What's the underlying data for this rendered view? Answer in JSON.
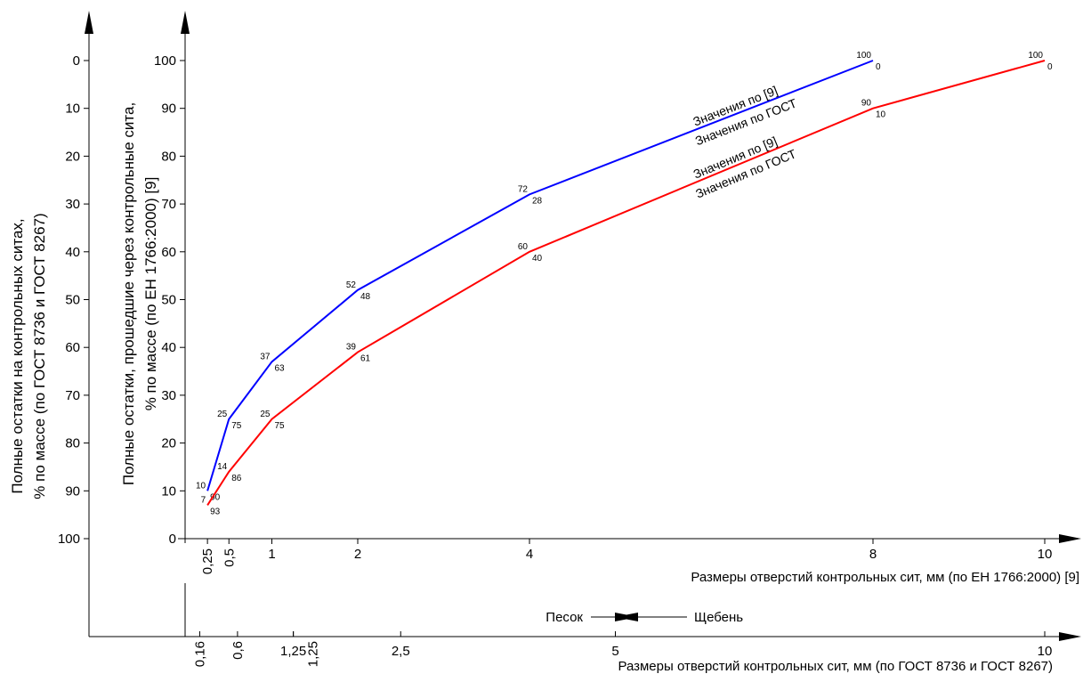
{
  "chart_data": {
    "type": "line",
    "y_title": [
      "Полные остатки, прошедшие через контрольные сита,",
      "% по массе (по ЕН 1766:2000) [9]"
    ],
    "y2_title": [
      "Полные остатки на контрольных ситах,",
      "% по массе (по ГОСТ 8736 и ГОСТ 8267)"
    ],
    "x_title": "Размеры отверстий контрольных сит, мм (по ЕН 1766:2000) [9]",
    "x2_title": "Размеры отверстий контрольных сит, мм (по ГОСТ 8736 и ГОСТ 8267)",
    "annotations": [
      "Песок",
      "Щебень"
    ],
    "xlim": [
      0,
      10
    ],
    "xticks": [
      {
        "value": 0.25,
        "label": "0,25"
      },
      {
        "value": 0.5,
        "label": "0,5"
      },
      1,
      2,
      4,
      8,
      10
    ],
    "x2ticks": [
      {
        "value": 0.16,
        "label": "0,16"
      },
      {
        "value": 1.25,
        "label": "1,25"
      },
      {
        "value": 0.6,
        "label": "0,6"
      },
      {
        "value": 1.25,
        "label": "1,25"
      },
      {
        "value": 2.5,
        "label": "2,5"
      },
      5,
      10
    ],
    "ylim": [
      0,
      100
    ],
    "yticks": [
      0,
      10,
      20,
      30,
      40,
      50,
      60,
      70,
      80,
      90,
      100
    ],
    "y2lim": [
      100,
      0
    ],
    "y2ticks": [
      0,
      10,
      20,
      30,
      40,
      50,
      60,
      70,
      80,
      90,
      100
    ],
    "series": [
      {
        "labels": [
          "Значения по [9]",
          "Значения по ГОСТ"
        ],
        "color": "#0000ff",
        "x": [
          0.25,
          0.5,
          1,
          2,
          4,
          8
        ],
        "values": [
          10,
          25,
          37,
          52,
          72,
          100
        ],
        "residues": [
          90,
          75,
          63,
          48,
          28,
          0
        ]
      },
      {
        "labels": [
          "Значения по [9]",
          "Значения по ГОСТ"
        ],
        "color": "#ff0000",
        "x": [
          0.25,
          0.5,
          1,
          2,
          4,
          8,
          10
        ],
        "values": [
          7,
          14,
          25,
          39,
          60,
          90,
          100
        ],
        "residues": [
          93,
          86,
          75,
          61,
          40,
          10,
          0
        ]
      }
    ]
  }
}
